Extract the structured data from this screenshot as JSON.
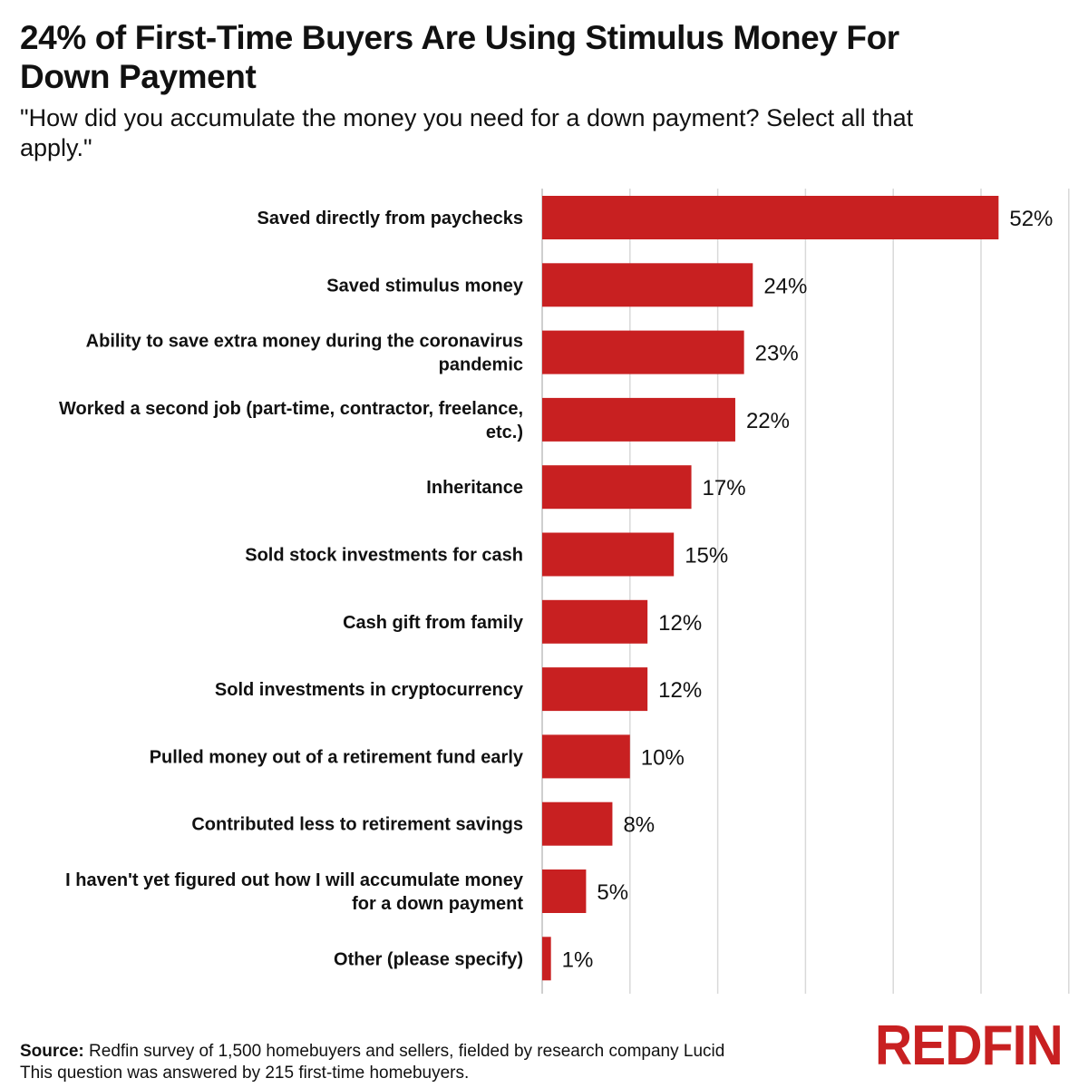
{
  "header": {
    "title": "24% of First-Time Buyers Are Using Stimulus Money For Down Payment",
    "subtitle": "\"How did you accumulate the money you need for a down payment? Select all that apply.\""
  },
  "footer": {
    "source_label": "Source:",
    "source_text": " Redfin survey of 1,500 homebuyers and sellers, fielded by research company Lucid",
    "note": "This question was answered by 215 first-time homebuyers."
  },
  "logo": {
    "text": "REDFIN"
  },
  "chart_data": {
    "type": "bar",
    "orientation": "horizontal",
    "title": "24% of First-Time Buyers Are Using Stimulus Money For Down Payment",
    "subtitle": "\"How did you accumulate the money you need for a down payment? Select all that apply.\"",
    "categories": [
      [
        "Saved directly from paychecks"
      ],
      [
        "Saved stimulus money"
      ],
      [
        "Ability to save extra money during the coronavirus",
        "pandemic"
      ],
      [
        "Worked a second job (part-time, contractor, freelance,",
        "etc.)"
      ],
      [
        "Inheritance"
      ],
      [
        "Sold stock investments for cash"
      ],
      [
        "Cash gift from family"
      ],
      [
        "Sold investments in cryptocurrency"
      ],
      [
        "Pulled money out of a retirement fund early"
      ],
      [
        "Contributed less to retirement savings"
      ],
      [
        "I haven't yet figured out how I will accumulate money",
        "for a down payment"
      ],
      [
        "Other (please specify)"
      ]
    ],
    "values": [
      52,
      24,
      23,
      22,
      17,
      15,
      12,
      12,
      10,
      8,
      5,
      1
    ],
    "value_labels": [
      "52%",
      "24%",
      "23%",
      "22%",
      "17%",
      "15%",
      "12%",
      "12%",
      "10%",
      "8%",
      "5%",
      "1%"
    ],
    "xlim": [
      0,
      60
    ],
    "grid": true,
    "gridline_step": 10,
    "bar_color": "#c82021",
    "grid_color": "#d9d9d9"
  }
}
